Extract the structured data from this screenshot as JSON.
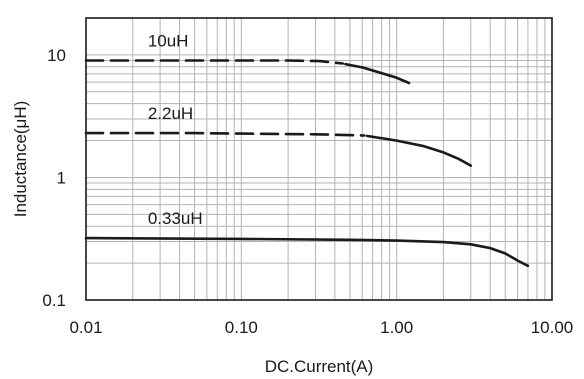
{
  "chart_data": {
    "type": "line",
    "title": "",
    "xlabel": "DC.Current(A)",
    "ylabel": "Inductance(μH)",
    "xscale": "log",
    "yscale": "log",
    "xlim": [
      0.01,
      10
    ],
    "ylim": [
      0.1,
      20
    ],
    "grid": true,
    "legend": "none",
    "x_ticks": [
      0.01,
      0.1,
      1,
      10
    ],
    "x_tick_labels": [
      "0.01",
      "0.10",
      "1.00",
      "10.00"
    ],
    "y_ticks": [
      0.1,
      1,
      10
    ],
    "y_tick_labels": [
      "0.1",
      "1",
      "10"
    ],
    "series": [
      {
        "name": "10uH",
        "dashed_until": 0.45,
        "points": [
          [
            0.01,
            9.0
          ],
          [
            0.05,
            9.0
          ],
          [
            0.1,
            9.0
          ],
          [
            0.2,
            9.0
          ],
          [
            0.32,
            8.9
          ],
          [
            0.45,
            8.5
          ],
          [
            0.6,
            7.9
          ],
          [
            0.8,
            7.1
          ],
          [
            1.0,
            6.5
          ],
          [
            1.2,
            5.9
          ]
        ]
      },
      {
        "name": "2.2uH",
        "dashed_until": 0.62,
        "points": [
          [
            0.01,
            2.3
          ],
          [
            0.05,
            2.3
          ],
          [
            0.1,
            2.28
          ],
          [
            0.3,
            2.25
          ],
          [
            0.62,
            2.2
          ],
          [
            0.65,
            2.18
          ],
          [
            1.0,
            2.0
          ],
          [
            1.5,
            1.8
          ],
          [
            2.0,
            1.6
          ],
          [
            2.5,
            1.42
          ],
          [
            3.0,
            1.25
          ]
        ]
      },
      {
        "name": "0.33uH",
        "dashed_until": null,
        "points": [
          [
            0.01,
            0.32
          ],
          [
            0.1,
            0.315
          ],
          [
            0.5,
            0.31
          ],
          [
            1.0,
            0.305
          ],
          [
            2.0,
            0.297
          ],
          [
            3.0,
            0.285
          ],
          [
            4.0,
            0.265
          ],
          [
            5.0,
            0.24
          ],
          [
            6.0,
            0.21
          ],
          [
            7.0,
            0.19
          ]
        ]
      }
    ],
    "style": {
      "line_color": "#1a1a1a",
      "grid_color": "#b3b3b3",
      "background": "#ffffff"
    }
  }
}
